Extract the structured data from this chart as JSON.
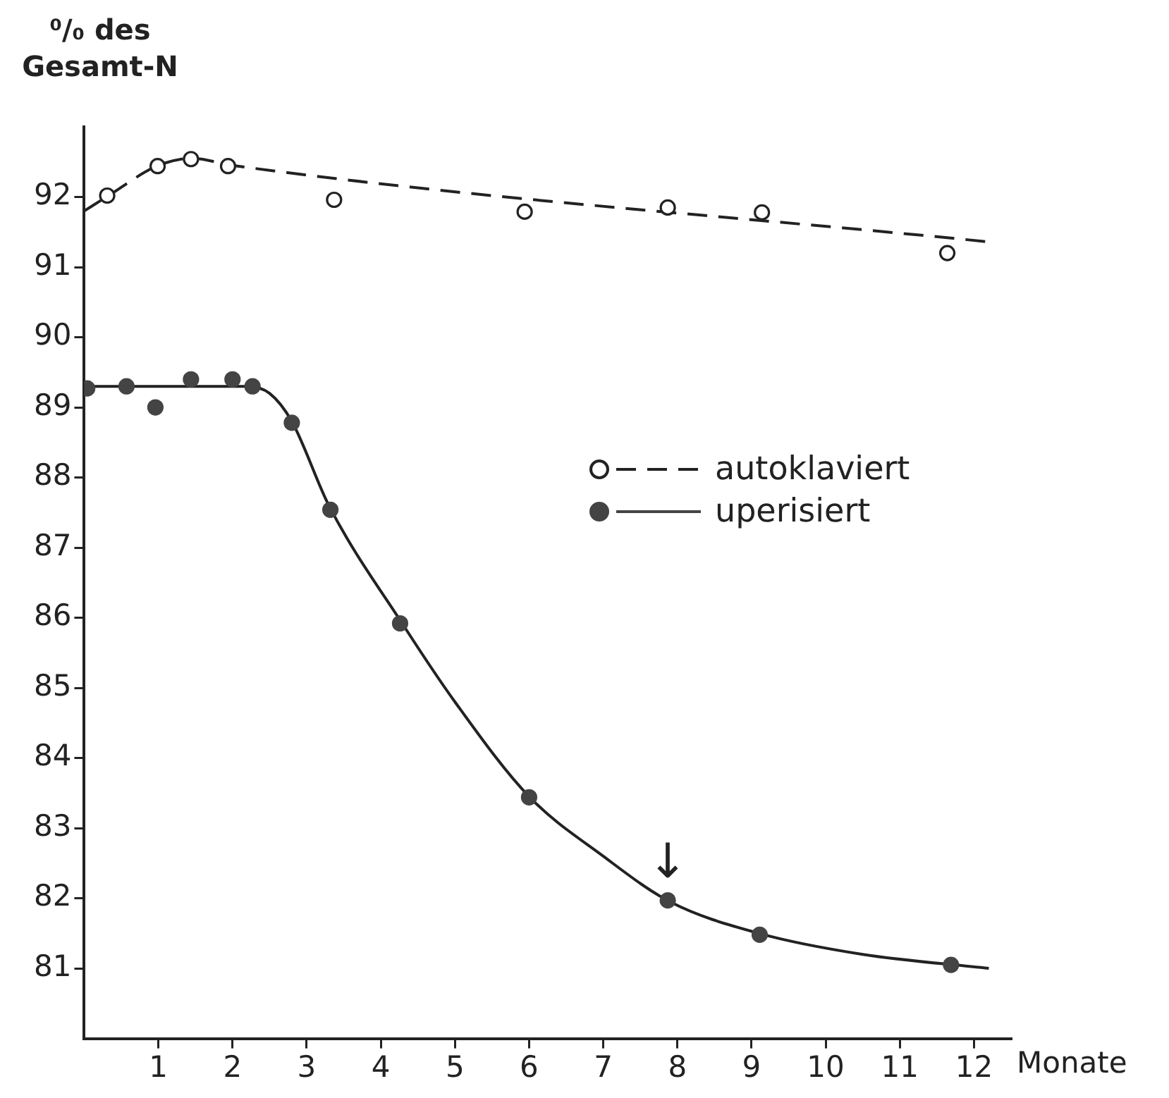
{
  "chart_data": {
    "type": "scatter",
    "ylabel": "⁰/₀ des Gesamt-N",
    "xlabel": "Monate",
    "xlim": [
      0,
      12.5
    ],
    "xticks": [
      1,
      2,
      3,
      4,
      5,
      6,
      7,
      8,
      9,
      10,
      11,
      12
    ],
    "ylim": [
      80,
      93
    ],
    "yticks": [
      81,
      82,
      83,
      84,
      85,
      86,
      87,
      88,
      89,
      90,
      91,
      92
    ],
    "grid": false,
    "legend": "right",
    "marker": "circle",
    "series": [
      {
        "name": "autoklaviert",
        "color": "#222222",
        "line_style": "dashed",
        "x": [
          0.31,
          0.99,
          1.44,
          1.94,
          3.37,
          5.94,
          7.87,
          9.14,
          11.64
        ],
        "values": [
          92.02,
          92.44,
          92.54,
          92.44,
          91.96,
          91.79,
          91.85,
          91.78,
          91.2
        ]
      },
      {
        "name": "uperisiert",
        "color": "#444444",
        "line_style": "solid",
        "x": [
          0.04,
          0.57,
          0.96,
          1.44,
          2.0,
          2.27,
          2.8,
          3.32,
          4.26,
          6.0,
          7.87,
          9.11,
          11.69
        ],
        "values": [
          89.27,
          89.3,
          89.0,
          89.4,
          89.4,
          89.3,
          88.78,
          87.54,
          85.92,
          83.44,
          81.97,
          81.48,
          81.05
        ]
      },
      {
        "type": "line",
        "color": "#222222",
        "line_style": "dashed",
        "marker": "none",
        "x": [
          0,
          0.3,
          1.0,
          1.45,
          2.0,
          12.2
        ],
        "values": [
          91.8,
          92.0,
          92.45,
          92.55,
          92.45,
          91.36
        ]
      },
      {
        "type": "line",
        "color": "#222222",
        "line_style": "solid",
        "marker": "none",
        "x": [
          0,
          2.2,
          2.5,
          2.8,
          3.3,
          4.3,
          5.0,
          6.0,
          7.0,
          7.9,
          9.1,
          10.5,
          12.2
        ],
        "values": [
          89.3,
          89.3,
          89.2,
          88.8,
          87.6,
          85.9,
          84.8,
          83.45,
          82.6,
          81.95,
          81.5,
          81.2,
          81.0
        ]
      }
    ],
    "annotations": [
      {
        "text": "↓",
        "x": 7.87,
        "y": 81.97
      }
    ]
  }
}
